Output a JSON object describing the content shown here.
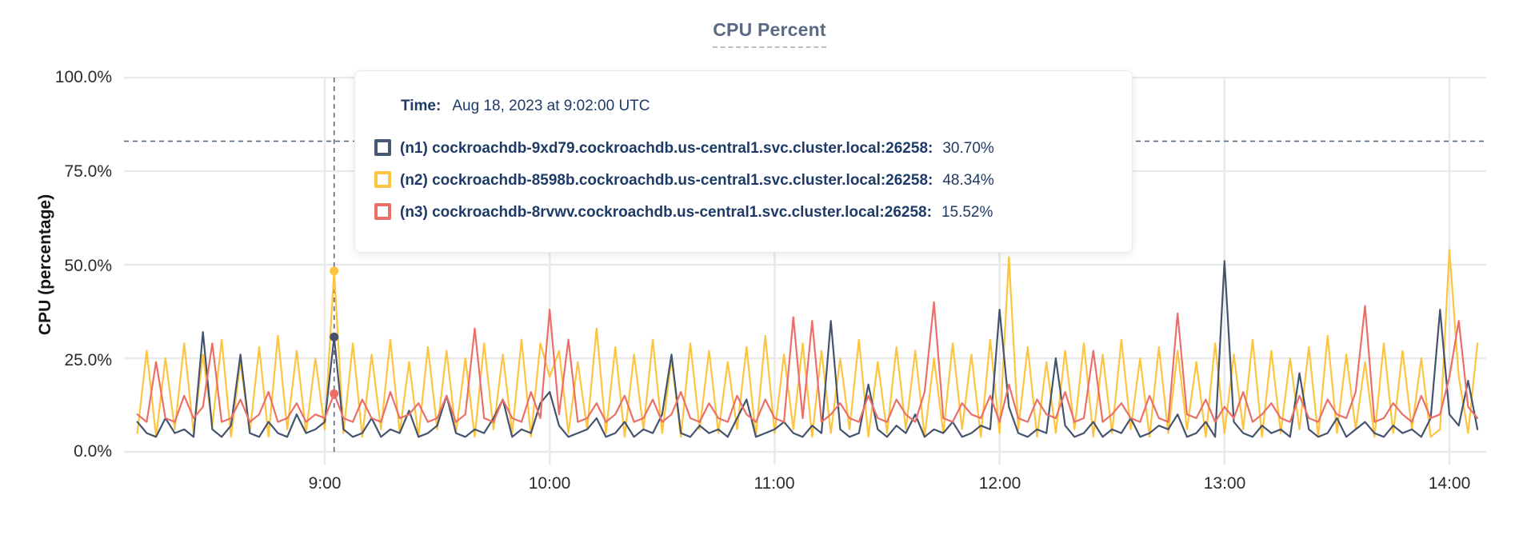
{
  "title": "CPU Percent",
  "y_axis": {
    "label": "CPU (percentage)",
    "ticks": [
      "100.0%",
      "75.0%",
      "50.0%",
      "25.0%",
      "0.0%"
    ]
  },
  "x_axis": {
    "ticks": [
      "9:00",
      "10:00",
      "11:00",
      "12:00",
      "13:00",
      "14:00"
    ]
  },
  "tooltip": {
    "time_label": "Time:",
    "time_value": "Aug 18, 2023 at 9:02:00 UTC",
    "rows": [
      {
        "label": "(n1) cockroachdb-9xd79.cockroachdb.us-central1.svc.cluster.local:26258:",
        "value": "30.70%",
        "color": "#475872"
      },
      {
        "label": "(n2) cockroachdb-8598b.cockroachdb.us-central1.svc.cluster.local:26258:",
        "value": "48.34%",
        "color": "#fdc53f"
      },
      {
        "label": "(n3) cockroachdb-8rvwv.cockroachdb.us-central1.svc.cluster.local:26258:",
        "value": "15.52%",
        "color": "#ec6e68"
      }
    ]
  },
  "colors": {
    "grid": "#e9e9e9",
    "crosshair": "#5b6b83",
    "title": "#5a6a85",
    "tooltip_text": "#1e3a66",
    "series_n1": "#44546e",
    "series_n2": "#fdc53f",
    "series_n3": "#ec6e68"
  },
  "chart_data": {
    "type": "line",
    "title": "CPU Percent",
    "xlabel": "",
    "ylabel": "CPU (percentage)",
    "ylim": [
      0,
      100
    ],
    "grid": true,
    "y_tick_values": [
      100,
      75,
      50,
      25,
      0
    ],
    "x_tick_minutes": [
      540,
      600,
      660,
      720,
      780,
      840
    ],
    "x_tick_labels": [
      "9:00",
      "10:00",
      "11:00",
      "12:00",
      "13:00",
      "14:00"
    ],
    "x_start_minutes": 490,
    "x_step_minutes": 2.5,
    "hover": {
      "time": "Aug 18, 2023 at 9:02:00 UTC",
      "x_minutes": 542.5,
      "crosshair_y_percent": 83,
      "values": {
        "n1": 30.7,
        "n2": 48.34,
        "n3": 15.52
      }
    },
    "series": [
      {
        "name": "(n2) cockroachdb-8598b.cockroachdb.us-central1.svc.cluster.local:26258",
        "color": "#fdc53f",
        "values": [
          5,
          27,
          4,
          25,
          6,
          29,
          5,
          26,
          7,
          30,
          4,
          24,
          5,
          28,
          4,
          31,
          6,
          27,
          5,
          25,
          6,
          48.34,
          5,
          29,
          4,
          26,
          6,
          30,
          5,
          24,
          4,
          28,
          6,
          27,
          5,
          25,
          4,
          29,
          6,
          26,
          5,
          30,
          4,
          29,
          20,
          27,
          5,
          24,
          6,
          33,
          5,
          28,
          4,
          26,
          6,
          30,
          5,
          25,
          4,
          29,
          6,
          27,
          5,
          24,
          6,
          28,
          4,
          31,
          5,
          26,
          6,
          29,
          4,
          27,
          5,
          25,
          6,
          30,
          4,
          24,
          5,
          28,
          6,
          27,
          4,
          25,
          5,
          29,
          6,
          26,
          4,
          30,
          5,
          52,
          6,
          28,
          4,
          24,
          5,
          27,
          6,
          29,
          4,
          26,
          5,
          30,
          6,
          25,
          4,
          28,
          5,
          27,
          6,
          24,
          4,
          29,
          5,
          26,
          6,
          30,
          4,
          27,
          5,
          25,
          6,
          28,
          4,
          31,
          5,
          26,
          6,
          24,
          4,
          29,
          5,
          27,
          6,
          25,
          4,
          6,
          54,
          20,
          5,
          29
        ]
      },
      {
        "name": "(n1) cockroachdb-9xd79.cockroachdb.us-central1.svc.cluster.local:26258",
        "color": "#44546e",
        "values": [
          8,
          5,
          4,
          9,
          5,
          6,
          4,
          32,
          6,
          4,
          7,
          26,
          5,
          4,
          8,
          5,
          4,
          10,
          5,
          6,
          8,
          30.7,
          6,
          4,
          5,
          9,
          4,
          6,
          5,
          11,
          4,
          5,
          7,
          15,
          5,
          4,
          6,
          5,
          9,
          14,
          4,
          6,
          5,
          13,
          16,
          7,
          4,
          5,
          6,
          9,
          4,
          5,
          8,
          4,
          6,
          5,
          10,
          26,
          5,
          4,
          7,
          5,
          6,
          4,
          9,
          14,
          4,
          5,
          6,
          8,
          5,
          4,
          7,
          5,
          35,
          6,
          4,
          5,
          18,
          6,
          4,
          7,
          5,
          10,
          4,
          6,
          5,
          8,
          4,
          5,
          7,
          6,
          38,
          12,
          5,
          4,
          6,
          5,
          25,
          7,
          4,
          5,
          8,
          4,
          6,
          5,
          9,
          4,
          5,
          7,
          6,
          10,
          4,
          5,
          8,
          4,
          51,
          8,
          5,
          4,
          7,
          5,
          6,
          4,
          21,
          6,
          4,
          5,
          9,
          4,
          6,
          8,
          5,
          4,
          7,
          5,
          6,
          4,
          9,
          38,
          10,
          7,
          19,
          6
        ]
      },
      {
        "name": "(n3) cockroachdb-8rvwv.cockroachdb.us-central1.svc.cluster.local:26258",
        "color": "#ec6e68",
        "values": [
          10,
          8,
          24,
          9,
          8,
          15,
          9,
          12,
          29,
          8,
          9,
          14,
          8,
          10,
          16,
          8,
          9,
          13,
          8,
          10,
          9,
          15.52,
          9,
          8,
          14,
          9,
          8,
          16,
          9,
          10,
          13,
          8,
          9,
          15,
          8,
          10,
          33,
          9,
          8,
          14,
          9,
          8,
          16,
          9,
          38,
          10,
          30,
          8,
          9,
          13,
          8,
          10,
          15,
          8,
          9,
          14,
          8,
          10,
          16,
          9,
          8,
          13,
          9,
          8,
          15,
          10,
          8,
          14,
          9,
          8,
          36,
          9,
          35,
          8,
          10,
          13,
          9,
          8,
          15,
          9,
          8,
          14,
          10,
          8,
          16,
          40,
          9,
          8,
          13,
          10,
          9,
          15,
          8,
          18,
          9,
          8,
          14,
          10,
          9,
          16,
          8,
          9,
          27,
          8,
          10,
          13,
          9,
          8,
          15,
          9,
          8,
          37,
          10,
          9,
          14,
          8,
          12,
          9,
          16,
          8,
          10,
          13,
          9,
          8,
          15,
          9,
          8,
          14,
          10,
          9,
          16,
          39,
          8,
          9,
          13,
          10,
          8,
          15,
          9,
          10,
          20,
          35,
          12,
          9
        ]
      }
    ]
  }
}
